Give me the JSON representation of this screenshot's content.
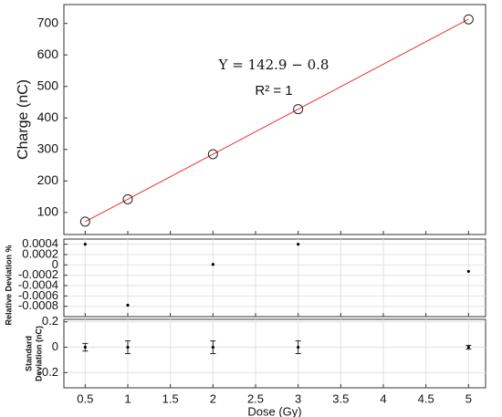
{
  "chart_data": [
    {
      "type": "scatter",
      "ylabel": "Charge (nC)",
      "x": [
        0.5,
        1,
        2,
        3,
        5
      ],
      "values": [
        71,
        142,
        285,
        428,
        713
      ],
      "fit": {
        "x": [
          0.5,
          5
        ],
        "values": [
          70.6,
          713.7
        ],
        "color": "#e8322d"
      },
      "annotations": [
        "Y = 142.9 − 0.8",
        "R² = 1"
      ],
      "xlim": [
        0.25,
        5.2
      ],
      "xticks": [
        0.5,
        1,
        1.5,
        2,
        2.5,
        3,
        3.5,
        4,
        4.5,
        5
      ],
      "ylim": [
        30,
        760
      ],
      "yticks": [
        100,
        200,
        300,
        400,
        500,
        600,
        700
      ],
      "grid": false
    },
    {
      "type": "scatter",
      "ylabel": "Relative Deviation %",
      "x": [
        0.5,
        1,
        2,
        3,
        5
      ],
      "values": [
        0.0004,
        -0.00078,
        1e-05,
        0.0004,
        -0.000125
      ],
      "xlim": [
        0.25,
        5.2
      ],
      "xticks": [
        0.5,
        1,
        1.5,
        2,
        2.5,
        3,
        3.5,
        4,
        4.5,
        5
      ],
      "ylim": [
        -0.001,
        0.0005
      ],
      "yticks": [
        0.0004,
        0.0002,
        0,
        -0.0002,
        -0.0004,
        -0.0006,
        -0.0008
      ],
      "grid": true
    },
    {
      "type": "errorbar",
      "ylabel": [
        "Standard",
        "Deviation (nC)"
      ],
      "xlabel": "Dose (Gy)",
      "x": [
        0.5,
        1,
        2,
        3,
        5
      ],
      "values": [
        0,
        0,
        0,
        0,
        0
      ],
      "errors": [
        0.03,
        0.05,
        0.05,
        0.05,
        0.015
      ],
      "xlim": [
        0.25,
        5.2
      ],
      "xticks": [
        0.5,
        1,
        1.5,
        2,
        2.5,
        3,
        3.5,
        4,
        4.5,
        5
      ],
      "ylim": [
        -0.32,
        0.22
      ],
      "yticks": [
        0.2,
        0,
        -0.2
      ],
      "grid": true
    }
  ]
}
